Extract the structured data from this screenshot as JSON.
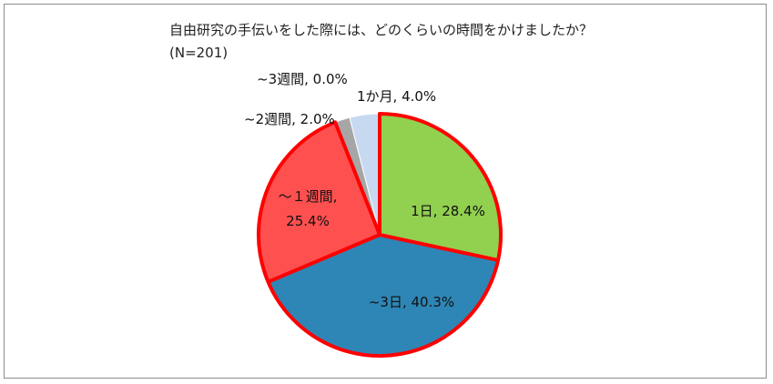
{
  "chart_data": {
    "type": "pie",
    "title": "自由研究の手伝いをした際には、どのくらいの時間をかけましたか？",
    "subtitle": "(N=201)",
    "start_angle_deg": 0,
    "direction": "clockwise",
    "slices": [
      {
        "label": "1日",
        "value": 28.4,
        "text": "1日, 28.4%",
        "color": "#92d050",
        "highlight": true
      },
      {
        "label": "~3日",
        "value": 40.3,
        "text": "~3日, 40.3%",
        "color": "#2e86b6",
        "highlight": true
      },
      {
        "label": "～１週間",
        "value": 25.4,
        "text_lines": [
          "～１週間,",
          "25.4%"
        ],
        "color": "#ff5050",
        "highlight": true
      },
      {
        "label": "~2週間",
        "value": 2.0,
        "text": "~2週間, 2.0%",
        "color": "#a6a6a6",
        "highlight": false
      },
      {
        "label": "~3週間",
        "value": 0.0,
        "text": "~3週間, 0.0%",
        "color": "#7f7f7f",
        "highlight": false
      },
      {
        "label": "1か月",
        "value": 4.0,
        "text": "1か月, 4.0%",
        "color": "#c6d9f1",
        "highlight": false
      }
    ],
    "highlight_color": "#ff0000",
    "legend": "none"
  }
}
